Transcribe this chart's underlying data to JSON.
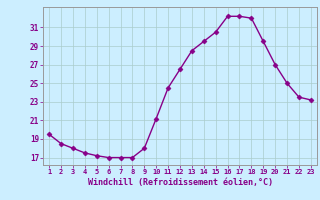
{
  "hours": [
    1,
    2,
    3,
    4,
    5,
    6,
    7,
    8,
    9,
    10,
    11,
    12,
    13,
    14,
    15,
    16,
    17,
    18,
    19,
    20,
    21,
    22,
    23
  ],
  "windchill": [
    19.5,
    18.5,
    18.0,
    17.5,
    17.2,
    17.0,
    17.0,
    17.0,
    18.0,
    21.2,
    24.5,
    26.5,
    28.5,
    29.5,
    30.5,
    32.2,
    32.2,
    32.0,
    29.5,
    27.0,
    25.0,
    23.5,
    23.2
  ],
  "line_color": "#880088",
  "marker": "D",
  "marker_size": 2.5,
  "bg_color": "#cceeff",
  "grid_color": "#aacccc",
  "xlabel": "Windchill (Refroidissement éolien,°C)",
  "ylabel_ticks": [
    17,
    19,
    21,
    23,
    25,
    27,
    29,
    31
  ],
  "xtick_labels": [
    "1",
    "2",
    "3",
    "4",
    "5",
    "6",
    "7",
    "8",
    "9",
    "10",
    "11",
    "12",
    "13",
    "14",
    "15",
    "16",
    "17",
    "18",
    "19",
    "20",
    "21",
    "22",
    "23"
  ],
  "ylim": [
    16.2,
    33.2
  ],
  "xlim": [
    0.5,
    23.5
  ],
  "tick_color": "#880088",
  "label_color": "#880088"
}
